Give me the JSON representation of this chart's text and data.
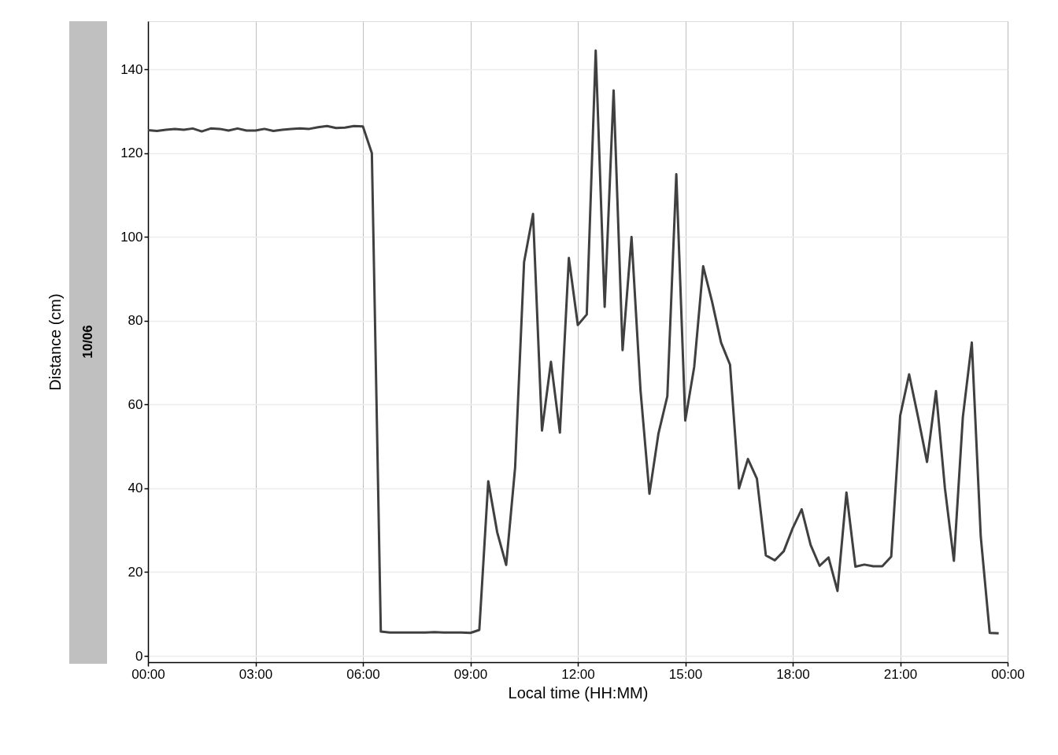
{
  "chart_data": {
    "type": "line",
    "xlabel": "Local time (HH:MM)",
    "ylabel": "Distance (cm)",
    "annotations": [
      "10/06"
    ],
    "x": [
      0,
      0.25,
      0.5,
      0.75,
      1,
      1.25,
      1.5,
      1.75,
      2,
      2.25,
      2.5,
      2.75,
      3,
      3.25,
      3.5,
      3.75,
      4,
      4.25,
      4.5,
      4.75,
      5,
      5.25,
      5.5,
      5.75,
      6,
      6.25,
      6.5,
      6.75,
      7,
      7.25,
      7.5,
      7.75,
      8,
      8.25,
      8.5,
      8.75,
      9,
      9.25,
      9.5,
      9.75,
      10,
      10.25,
      10.5,
      10.75,
      11,
      11.25,
      11.5,
      11.75,
      12,
      12.25,
      12.5,
      12.75,
      13,
      13.25,
      13.5,
      13.75,
      14,
      14.25,
      14.5,
      14.75,
      15,
      15.25,
      15.5,
      15.75,
      16,
      16.25,
      16.5,
      16.75,
      17,
      17.25,
      17.5,
      17.75,
      18,
      18.25,
      18.5,
      18.75,
      19,
      19.25,
      19.5,
      19.75,
      20,
      20.25,
      20.5,
      20.75,
      21,
      21.25,
      21.5,
      21.75,
      22,
      22.25,
      22.5,
      22.75,
      23,
      23.25,
      23.5,
      23.75
    ],
    "series": [
      {
        "color": "#404040",
        "values": [
          125.5,
          125.3,
          125.6,
          125.8,
          125.6,
          125.9,
          125.2,
          125.9,
          125.8,
          125.4,
          125.9,
          125.4,
          125.4,
          125.8,
          125.3,
          125.6,
          125.8,
          125.9,
          125.8,
          126.2,
          126.5,
          126.0,
          126.1,
          126.5,
          126.4,
          120,
          5.8,
          5.6,
          5.6,
          5.6,
          5.6,
          5.6,
          5.7,
          5.6,
          5.6,
          5.6,
          5.5,
          6.2,
          41.7,
          29.5,
          21.7,
          45,
          94,
          105.5,
          53.8,
          70.2,
          53.3,
          95,
          79,
          81.5,
          144.5,
          83.3,
          135,
          73,
          100,
          63.5,
          38.7,
          53,
          62,
          115,
          56.2,
          69,
          93,
          84.5,
          74.8,
          69.5,
          40,
          47,
          42.3,
          24,
          22.8,
          25,
          30.5,
          35,
          26.5,
          21.5,
          23.5,
          15.5,
          39,
          21.3,
          21.8,
          21.4,
          21.4,
          23.7,
          57.3,
          67.2,
          57,
          46.3,
          63.2,
          40,
          22.7,
          57,
          74.8,
          28.5,
          5.5,
          5.4
        ]
      }
    ],
    "xlim": [
      0,
      24
    ],
    "xticks": [
      {
        "value": 0,
        "label": "00:00"
      },
      {
        "value": 3,
        "label": "03:00"
      },
      {
        "value": 6,
        "label": "06:00"
      },
      {
        "value": 9,
        "label": "09:00"
      },
      {
        "value": 12,
        "label": "12:00"
      },
      {
        "value": 15,
        "label": "15:00"
      },
      {
        "value": 18,
        "label": "18:00"
      },
      {
        "value": 21,
        "label": "21:00"
      },
      {
        "value": 24,
        "label": "00:00"
      }
    ],
    "ylim": [
      -1.5,
      151.5
    ],
    "yticks": [
      0,
      20,
      40,
      60,
      80,
      100,
      120,
      140
    ],
    "grid": true,
    "line_style": "solid",
    "marker": "none"
  }
}
